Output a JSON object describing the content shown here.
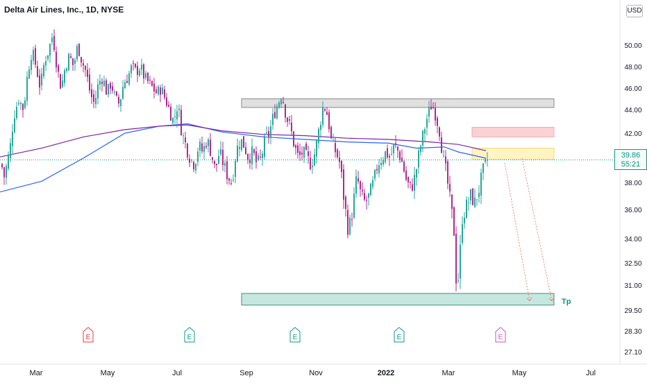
{
  "header": {
    "title": "Delta Air Lines, Inc., 1D, NYSE",
    "currency": "USD"
  },
  "price_tag": {
    "price": "39.86",
    "countdown": "55:21"
  },
  "chart_data": {
    "type": "candlestick",
    "title": "Delta Air Lines, Inc., 1D, NYSE",
    "y_axis": {
      "ticks": [
        50.0,
        48.0,
        46.0,
        44.0,
        42.0,
        40.0,
        38.0,
        36.0,
        34.0,
        32.5,
        31.0,
        29.5,
        28.3,
        27.1
      ],
      "tick_labels": [
        "50.00",
        "48.00",
        "46.00",
        "44.00",
        "42.00",
        "40.00",
        "38.00",
        "36.00",
        "34.00",
        "32.50",
        "31.00",
        "29.50",
        "28.30",
        "27.10"
      ],
      "current_price": 39.86
    },
    "x_axis": {
      "labels": [
        "Mar",
        "May",
        "Jul",
        "Sep",
        "Nov",
        "2022",
        "Mar",
        "May",
        "Jul"
      ],
      "bold": [
        "2022"
      ]
    },
    "colors": {
      "up": "#26a69a",
      "down": "#b0278f",
      "ma_fast": "#2962ff",
      "ma_slow": "#7b1fa2",
      "accent": "#089981"
    },
    "price_path": [
      [
        0,
        40.0
      ],
      [
        6,
        38.5
      ],
      [
        14,
        40.5
      ],
      [
        20,
        43.5
      ],
      [
        27,
        45.0
      ],
      [
        34,
        44.0
      ],
      [
        40,
        47.5
      ],
      [
        46,
        49.5
      ],
      [
        52,
        48.0
      ],
      [
        58,
        46.0
      ],
      [
        64,
        48.5
      ],
      [
        70,
        49.5
      ],
      [
        76,
        51.0
      ],
      [
        82,
        48.0
      ],
      [
        88,
        46.0
      ],
      [
        94,
        48.0
      ],
      [
        100,
        49.0
      ],
      [
        106,
        48.0
      ],
      [
        112,
        50.0
      ],
      [
        118,
        48.5
      ],
      [
        124,
        47.5
      ],
      [
        130,
        45.5
      ],
      [
        136,
        44.5
      ],
      [
        142,
        46.5
      ],
      [
        148,
        47.0
      ],
      [
        154,
        45.5
      ],
      [
        160,
        46.5
      ],
      [
        166,
        45.0
      ],
      [
        172,
        44.5
      ],
      [
        178,
        46.5
      ],
      [
        184,
        47.0
      ],
      [
        190,
        48.0
      ],
      [
        196,
        47.5
      ],
      [
        202,
        48.0
      ],
      [
        208,
        47.0
      ],
      [
        214,
        46.5
      ],
      [
        220,
        46.0
      ],
      [
        226,
        45.5
      ],
      [
        232,
        46.0
      ],
      [
        238,
        45.0
      ],
      [
        244,
        44.0
      ],
      [
        250,
        43.0
      ],
      [
        256,
        44.5
      ],
      [
        262,
        42.0
      ],
      [
        268,
        41.0
      ],
      [
        274,
        40.0
      ],
      [
        280,
        39.5
      ],
      [
        286,
        41.0
      ],
      [
        292,
        40.5
      ],
      [
        298,
        41.5
      ],
      [
        304,
        40.5
      ],
      [
        310,
        39.0
      ],
      [
        316,
        40.5
      ],
      [
        322,
        39.5
      ],
      [
        328,
        38.5
      ],
      [
        334,
        38.0
      ],
      [
        340,
        40.5
      ],
      [
        346,
        41.5
      ],
      [
        352,
        41.0
      ],
      [
        358,
        40.0
      ],
      [
        364,
        40.5
      ],
      [
        370,
        39.5
      ],
      [
        376,
        40.0
      ],
      [
        382,
        41.5
      ],
      [
        388,
        42.0
      ],
      [
        394,
        43.5
      ],
      [
        400,
        44.5
      ],
      [
        406,
        45.5
      ],
      [
        412,
        43.5
      ],
      [
        418,
        42.5
      ],
      [
        424,
        41.0
      ],
      [
        430,
        40.0
      ],
      [
        436,
        40.5
      ],
      [
        442,
        40.0
      ],
      [
        448,
        39.5
      ],
      [
        454,
        40.5
      ],
      [
        460,
        42.5
      ],
      [
        466,
        44.5
      ],
      [
        472,
        43.5
      ],
      [
        478,
        41.0
      ],
      [
        484,
        40.5
      ],
      [
        490,
        39.5
      ],
      [
        496,
        36.5
      ],
      [
        502,
        34.5
      ],
      [
        508,
        36.0
      ],
      [
        514,
        38.5
      ],
      [
        520,
        37.0
      ],
      [
        526,
        36.5
      ],
      [
        532,
        37.0
      ],
      [
        538,
        38.0
      ],
      [
        544,
        39.5
      ],
      [
        550,
        40.0
      ],
      [
        556,
        40.5
      ],
      [
        562,
        40.0
      ],
      [
        568,
        41.0
      ],
      [
        574,
        40.5
      ],
      [
        580,
        39.5
      ],
      [
        586,
        38.0
      ],
      [
        592,
        37.5
      ],
      [
        598,
        38.5
      ],
      [
        604,
        40.5
      ],
      [
        610,
        42.0
      ],
      [
        616,
        43.5
      ],
      [
        622,
        44.5
      ],
      [
        628,
        43.5
      ],
      [
        634,
        42.0
      ],
      [
        638,
        40.0
      ],
      [
        642,
        39.0
      ],
      [
        646,
        37.5
      ],
      [
        650,
        36.0
      ],
      [
        654,
        34.5
      ],
      [
        658,
        30.5
      ],
      [
        662,
        32.5
      ],
      [
        666,
        35.5
      ],
      [
        670,
        36.0
      ],
      [
        674,
        36.5
      ],
      [
        678,
        37.0
      ],
      [
        684,
        36.5
      ],
      [
        690,
        37.5
      ],
      [
        696,
        39.0
      ],
      [
        702,
        39.86
      ]
    ],
    "moving_averages": [
      {
        "name": "MA fast",
        "values": [
          [
            0,
            37.3
          ],
          [
            60,
            38.1
          ],
          [
            120,
            40.0
          ],
          [
            180,
            42.0
          ],
          [
            230,
            42.6
          ],
          [
            270,
            42.8
          ],
          [
            320,
            42.1
          ],
          [
            380,
            41.7
          ],
          [
            440,
            41.5
          ],
          [
            500,
            41.3
          ],
          [
            560,
            41.2
          ],
          [
            600,
            40.8
          ],
          [
            640,
            40.9
          ],
          [
            660,
            40.5
          ],
          [
            700,
            40.0
          ]
        ]
      },
      {
        "name": "MA slow",
        "values": [
          [
            0,
            40.1
          ],
          [
            60,
            40.8
          ],
          [
            120,
            41.7
          ],
          [
            180,
            42.3
          ],
          [
            230,
            42.6
          ],
          [
            270,
            42.7
          ],
          [
            320,
            42.2
          ],
          [
            380,
            41.9
          ],
          [
            440,
            41.8
          ],
          [
            500,
            41.6
          ],
          [
            560,
            41.5
          ],
          [
            620,
            41.3
          ],
          [
            660,
            41.1
          ],
          [
            700,
            40.6
          ]
        ]
      }
    ],
    "zones": [
      {
        "name": "resistance-top",
        "low": 44.2,
        "high": 45.0,
        "color": "#e0e0e0"
      },
      {
        "name": "sell-zone-red",
        "low": 41.7,
        "high": 42.5,
        "color": "#fbd1d4"
      },
      {
        "name": "entry-zone-yellow",
        "low": 39.9,
        "high": 40.8,
        "color": "#fff4c2"
      },
      {
        "name": "target-zone",
        "low": 29.8,
        "high": 30.5,
        "color": "#c6e7df"
      }
    ],
    "annotations": {
      "target_label": "Tp"
    },
    "event_markers": [
      "E",
      "E",
      "E",
      "E",
      "E"
    ]
  }
}
